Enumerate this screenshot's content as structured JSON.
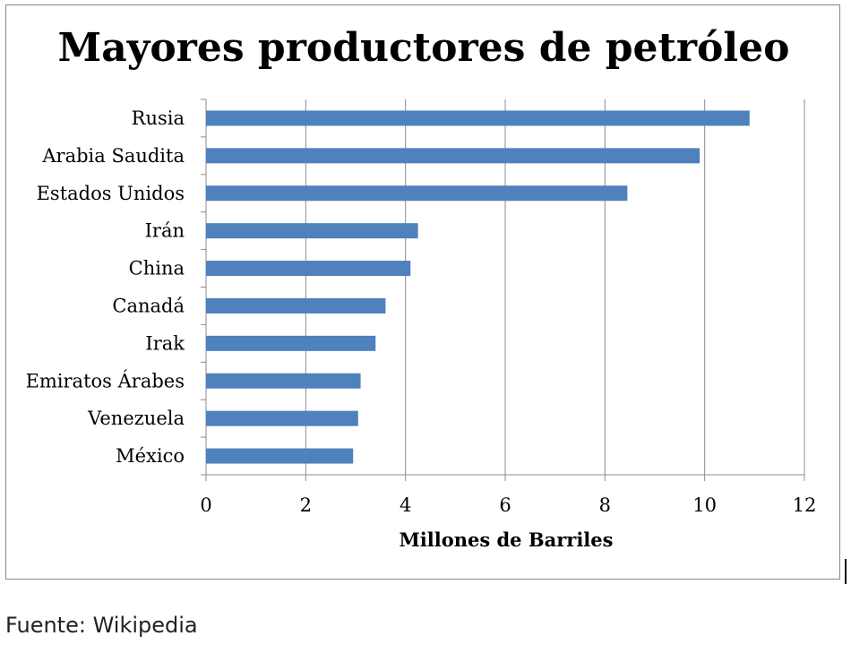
{
  "chart_data": {
    "type": "bar",
    "orientation": "horizontal",
    "title": "Mayores productores de petróleo",
    "xlabel": "Millones de Barriles",
    "categories": [
      "Rusia",
      "Arabia Saudita",
      "Estados Unidos",
      "Irán",
      "China",
      "Canadá",
      "Irak",
      "Emiratos Árabes",
      "Venezuela",
      "México"
    ],
    "values": [
      10.9,
      9.9,
      8.45,
      4.25,
      4.1,
      3.6,
      3.4,
      3.1,
      3.05,
      2.95
    ],
    "xlim": [
      0,
      12
    ],
    "xticks": [
      0,
      2,
      4,
      6,
      8,
      10,
      12
    ],
    "grid": true,
    "legend": "none",
    "bar_color": "#4f81bd"
  },
  "footer": {
    "source": "Fuente: Wikipedia"
  }
}
